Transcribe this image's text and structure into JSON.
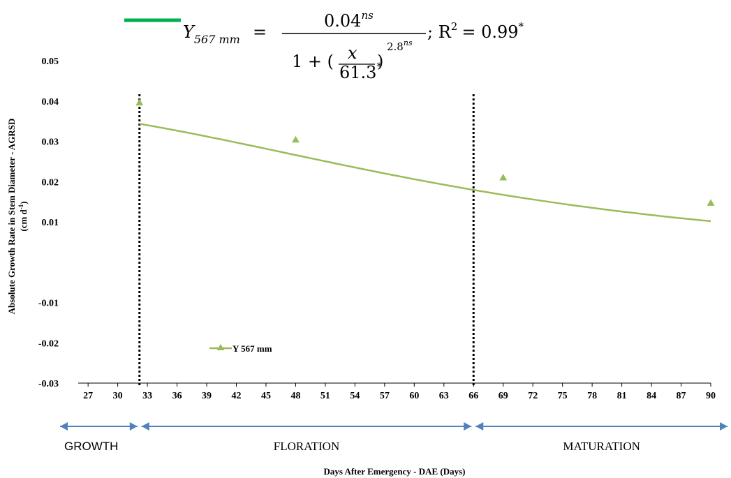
{
  "chart_data": {
    "type": "line",
    "title": "",
    "xlabel": "Days After Emergency - DAE (Days)",
    "ylabel_line1": "Absolute Growth Rate in Stem Diameter - AGRSD",
    "ylabel_unit": "(cm  d",
    "ylabel_unit_exp": "-1",
    "ylabel_unit_close": ")",
    "x_ticks": [
      "27",
      "30",
      "33",
      "36",
      "39",
      "42",
      "45",
      "48",
      "51",
      "54",
      "57",
      "60",
      "63",
      "66",
      "69",
      "72",
      "75",
      "78",
      "81",
      "84",
      "87",
      "90"
    ],
    "y_ticks": [
      "-0.03",
      "-0.02",
      "-0.01",
      "0.01",
      "0.02",
      "0.03",
      "0.04",
      "0.05"
    ],
    "xlim": [
      26,
      90
    ],
    "ylim": [
      -0.03,
      0.05
    ],
    "series": [
      {
        "name": "Y 567 mm",
        "color": "#9bbb59",
        "marker": "triangle",
        "markers": [
          {
            "x": 32.2,
            "y": 0.0395
          },
          {
            "x": 48,
            "y": 0.0303
          },
          {
            "x": 69,
            "y": 0.0209
          },
          {
            "x": 90,
            "y": 0.0146
          }
        ],
        "curve": {
          "a": 0.04,
          "b": 61.3,
          "c": 2.8
        }
      }
    ],
    "vlines": [
      32.2,
      66
    ],
    "phases": [
      {
        "label": "GROWTH",
        "from": 26,
        "to": 32.2
      },
      {
        "label": "FLORATION",
        "from": 32.2,
        "to": 66
      },
      {
        "label": "MATURATION",
        "from": 66,
        "to": 90
      }
    ],
    "equation": {
      "lhs": "Y",
      "lhs_sub": "567 mm",
      "eq": "=",
      "num": "0.04",
      "num_sup": "ns",
      "den_pre": "1 + (",
      "den_x": "x",
      "den_b": "61.3",
      "den_b_sup": "*",
      "den_close": ")",
      "den_exp": "2.8",
      "den_exp_sup": "ns",
      "r2_label": "; R",
      "r2_sup": "2",
      "r2_val": "= 0.99",
      "r2_star": "*",
      "line_color": "#00b050"
    }
  }
}
